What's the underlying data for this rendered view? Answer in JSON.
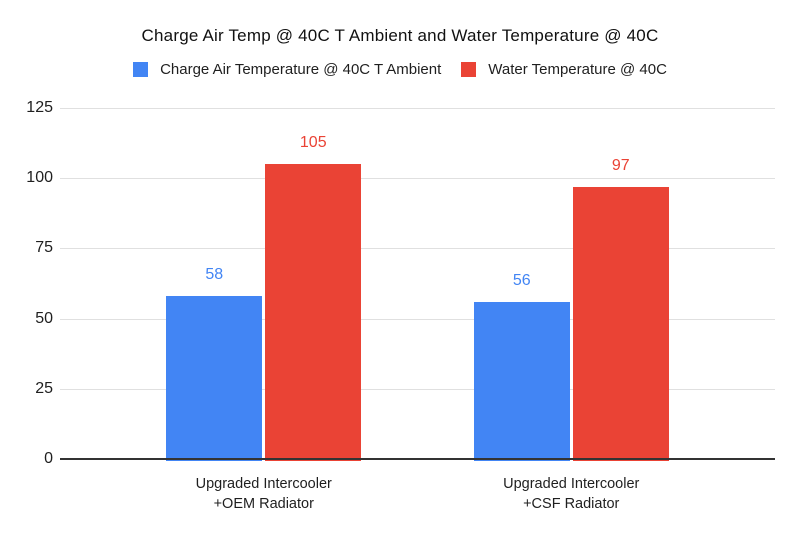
{
  "chart_data": {
    "type": "bar",
    "title": "Charge Air Temp @ 40C T Ambient and Water Temperature @ 40C",
    "categories": [
      "Upgraded Intercooler +OEM Radiator",
      "Upgraded Intercooler +CSF Radiator"
    ],
    "category_lines": [
      [
        "Upgraded Intercooler",
        "+OEM Radiator"
      ],
      [
        "Upgraded Intercooler",
        "+CSF Radiator"
      ]
    ],
    "series": [
      {
        "name": "Charge Air Temperature @ 40C T Ambient",
        "color": "#4285F4",
        "values": [
          58,
          56
        ]
      },
      {
        "name": "Water Temperature @ 40C",
        "color": "#EA4335",
        "values": [
          105,
          97
        ]
      }
    ],
    "xlabel": "",
    "ylabel": "",
    "ylim": [
      0,
      125
    ],
    "yticks": [
      0,
      25,
      50,
      75,
      100,
      125
    ],
    "grid": true,
    "legend_position": "top",
    "data_labels_shown": true,
    "colors": {
      "grid": "#e0e0e0",
      "axis": "#333333",
      "tick_text": "#1f1f1f",
      "title_text": "#111111",
      "background": "#ffffff"
    }
  }
}
